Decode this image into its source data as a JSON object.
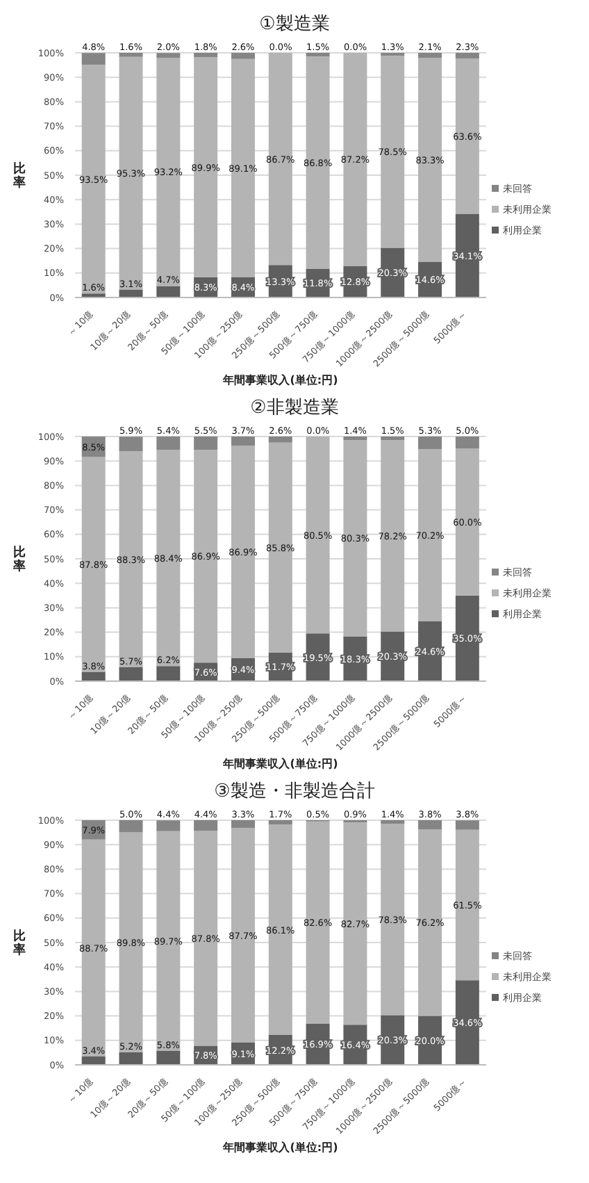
{
  "chart_data": [
    {
      "type": "bar",
      "title": "①製造業",
      "xlabel": "年間事業収入(単位:円)",
      "ylabel": "比率",
      "stacked": true,
      "grid": "y",
      "legend": "right",
      "categories": [
        "～10億",
        "10億～20億",
        "20億～50億",
        "50億～100億",
        "100億～250億",
        "250億～500億",
        "500億～750億",
        "750億～1000億",
        "1000億～2500億",
        "2500億～5000億",
        "5000億～"
      ],
      "ylim": [
        0,
        100
      ],
      "yticks": [
        {
          "value": 0,
          "label": "0%"
        },
        {
          "value": 10,
          "label": "10%"
        },
        {
          "value": 20,
          "label": "20%"
        },
        {
          "value": 30,
          "label": "30%"
        },
        {
          "value": 40,
          "label": "40%"
        },
        {
          "value": 50,
          "label": "50%"
        },
        {
          "value": 60,
          "label": "60%"
        },
        {
          "value": 70,
          "label": "70%"
        },
        {
          "value": 80,
          "label": "80%"
        },
        {
          "value": 90,
          "label": "90%"
        },
        {
          "value": 100,
          "label": "100%"
        }
      ],
      "series": [
        {
          "name": "利用企業",
          "color": "#5f5f5f",
          "values": [
            1.6,
            3.1,
            4.7,
            8.3,
            8.4,
            13.3,
            11.8,
            12.8,
            20.3,
            14.6,
            34.1
          ],
          "value_labels": [
            "1.6%",
            "3.1%",
            "4.7%",
            "8.3%",
            "8.4%",
            "13.3%",
            "11.8%",
            "12.8%",
            "20.3%",
            "14.6%",
            "34.1%"
          ]
        },
        {
          "name": "未利用企業",
          "color": "#b4b4b4",
          "values": [
            93.5,
            95.3,
            93.2,
            89.9,
            89.1,
            86.7,
            86.8,
            87.2,
            78.5,
            83.3,
            63.6
          ],
          "value_labels": [
            "93.5%",
            "95.3%",
            "93.2%",
            "89.9%",
            "89.1%",
            "86.7%",
            "86.8%",
            "87.2%",
            "78.5%",
            "83.3%",
            "63.6%"
          ]
        },
        {
          "name": "未回答",
          "color": "#858585",
          "values": [
            4.8,
            1.6,
            2.0,
            1.8,
            2.6,
            0.0,
            1.5,
            0.0,
            1.3,
            2.1,
            2.3
          ],
          "value_labels": [
            "4.8%",
            "1.6%",
            "2.0%",
            "1.8%",
            "2.6%",
            "0.0%",
            "1.5%",
            "0.0%",
            "1.3%",
            "2.1%",
            "2.3%"
          ]
        }
      ]
    },
    {
      "type": "bar",
      "title": "②非製造業",
      "xlabel": "年間事業収入(単位:円)",
      "ylabel": "比率",
      "stacked": true,
      "grid": "y",
      "legend": "right",
      "categories": [
        "～10億",
        "10億～20億",
        "20億～50億",
        "50億～100億",
        "100億～250億",
        "250億～500億",
        "500億～750億",
        "750億～1000億",
        "1000億～2500億",
        "2500億～5000億",
        "5000億～"
      ],
      "ylim": [
        0,
        100
      ],
      "yticks": [
        {
          "value": 0,
          "label": "0%"
        },
        {
          "value": 10,
          "label": "10%"
        },
        {
          "value": 20,
          "label": "20%"
        },
        {
          "value": 30,
          "label": "30%"
        },
        {
          "value": 40,
          "label": "40%"
        },
        {
          "value": 50,
          "label": "50%"
        },
        {
          "value": 60,
          "label": "60%"
        },
        {
          "value": 70,
          "label": "70%"
        },
        {
          "value": 80,
          "label": "80%"
        },
        {
          "value": 90,
          "label": "90%"
        },
        {
          "value": 100,
          "label": "100%"
        }
      ],
      "series": [
        {
          "name": "利用企業",
          "color": "#5f5f5f",
          "values": [
            3.8,
            5.7,
            6.2,
            7.6,
            9.4,
            11.7,
            19.5,
            18.3,
            20.3,
            24.6,
            35.0
          ],
          "value_labels": [
            "3.8%",
            "5.7%",
            "6.2%",
            "7.6%",
            "9.4%",
            "11.7%",
            "19.5%",
            "18.3%",
            "20.3%",
            "24.6%",
            "35.0%"
          ]
        },
        {
          "name": "未利用企業",
          "color": "#b4b4b4",
          "values": [
            87.8,
            88.3,
            88.4,
            86.9,
            86.9,
            85.8,
            80.5,
            80.3,
            78.2,
            70.2,
            60.0
          ],
          "value_labels": [
            "87.8%",
            "88.3%",
            "88.4%",
            "86.9%",
            "86.9%",
            "85.8%",
            "80.5%",
            "80.3%",
            "78.2%",
            "70.2%",
            "60.0%"
          ]
        },
        {
          "name": "未回答",
          "color": "#858585",
          "values": [
            8.5,
            5.9,
            5.4,
            5.5,
            3.7,
            2.6,
            0.0,
            1.4,
            1.5,
            5.3,
            5.0
          ],
          "value_labels": [
            "8.5%",
            "5.9%",
            "5.4%",
            "5.5%",
            "3.7%",
            "2.6%",
            "0.0%",
            "1.4%",
            "1.5%",
            "5.3%",
            "5.0%"
          ]
        }
      ]
    },
    {
      "type": "bar",
      "title": "③製造・非製造合計",
      "xlabel": "年間事業収入(単位:円)",
      "ylabel": "比率",
      "stacked": true,
      "grid": "y",
      "legend": "right",
      "categories": [
        "～10億",
        "10億～20億",
        "20億～50億",
        "50億～100億",
        "100億～250億",
        "250億～500億",
        "500億～750億",
        "750億～1000億",
        "1000億～2500億",
        "2500億～5000億",
        "5000億～"
      ],
      "ylim": [
        0,
        100
      ],
      "yticks": [
        {
          "value": 0,
          "label": "0%"
        },
        {
          "value": 10,
          "label": "10%"
        },
        {
          "value": 20,
          "label": "20%"
        },
        {
          "value": 30,
          "label": "30%"
        },
        {
          "value": 40,
          "label": "40%"
        },
        {
          "value": 50,
          "label": "50%"
        },
        {
          "value": 60,
          "label": "60%"
        },
        {
          "value": 70,
          "label": "70%"
        },
        {
          "value": 80,
          "label": "80%"
        },
        {
          "value": 90,
          "label": "90%"
        },
        {
          "value": 100,
          "label": "100%"
        }
      ],
      "series": [
        {
          "name": "利用企業",
          "color": "#5f5f5f",
          "values": [
            3.4,
            5.2,
            5.8,
            7.8,
            9.1,
            12.2,
            16.9,
            16.4,
            20.3,
            20.0,
            34.6
          ],
          "value_labels": [
            "3.4%",
            "5.2%",
            "5.8%",
            "7.8%",
            "9.1%",
            "12.2%",
            "16.9%",
            "16.4%",
            "20.3%",
            "20.0%",
            "34.6%"
          ]
        },
        {
          "name": "未利用企業",
          "color": "#b4b4b4",
          "values": [
            88.7,
            89.8,
            89.7,
            87.8,
            87.7,
            86.1,
            82.6,
            82.7,
            78.3,
            76.2,
            61.5
          ],
          "value_labels": [
            "88.7%",
            "89.8%",
            "89.7%",
            "87.8%",
            "87.7%",
            "86.1%",
            "82.6%",
            "82.7%",
            "78.3%",
            "76.2%",
            "61.5%"
          ]
        },
        {
          "name": "未回答",
          "color": "#858585",
          "values": [
            7.9,
            5.0,
            4.4,
            4.4,
            3.3,
            1.7,
            0.5,
            0.9,
            1.4,
            3.8,
            3.8
          ],
          "value_labels": [
            "7.9%",
            "5.0%",
            "4.4%",
            "4.4%",
            "3.3%",
            "1.7%",
            "0.5%",
            "0.9%",
            "1.4%",
            "3.8%",
            "3.8%"
          ]
        }
      ]
    }
  ]
}
